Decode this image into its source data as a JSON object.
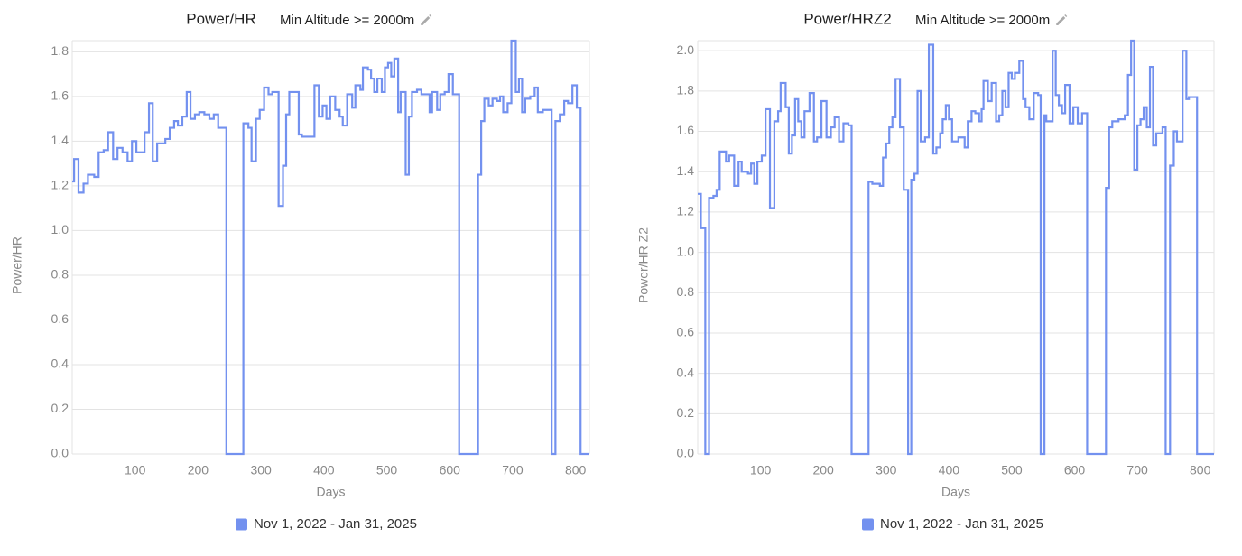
{
  "chart_data": [
    {
      "type": "line",
      "step": "after",
      "title": "Power/HR",
      "subtitle": "Min Altitude >= 2000m",
      "x_label": "Days",
      "y_label": "Power/HR",
      "grid": true,
      "xlim": [
        0,
        822
      ],
      "xticks": [
        100,
        200,
        300,
        400,
        500,
        600,
        700,
        800
      ],
      "ylim": [
        0,
        1.85
      ],
      "yticks": [
        {
          "value": 0,
          "label": "0.0"
        },
        0.2,
        0.4,
        0.6,
        0.8,
        {
          "value": 1,
          "label": "1.0"
        },
        1.2,
        1.4,
        1.6,
        1.8
      ],
      "x": [
        0,
        3,
        10,
        18,
        25,
        35,
        42,
        50,
        57,
        65,
        72,
        80,
        88,
        95,
        102,
        108,
        115,
        122,
        128,
        135,
        148,
        155,
        162,
        168,
        175,
        182,
        188,
        195,
        202,
        210,
        218,
        225,
        232,
        242,
        245,
        272,
        280,
        285,
        292,
        298,
        305,
        312,
        318,
        328,
        335,
        340,
        345,
        355,
        360,
        365,
        380,
        385,
        392,
        398,
        404,
        410,
        418,
        425,
        430,
        437,
        445,
        450,
        458,
        462,
        470,
        475,
        480,
        485,
        492,
        497,
        502,
        507,
        512,
        518,
        522,
        530,
        535,
        540,
        548,
        555,
        562,
        568,
        572,
        580,
        585,
        592,
        598,
        605,
        615,
        645,
        650,
        655,
        662,
        668,
        675,
        680,
        685,
        692,
        698,
        705,
        710,
        715,
        720,
        728,
        735,
        740,
        748,
        758,
        762,
        768,
        775,
        782,
        788,
        795,
        802,
        808
      ],
      "series": [
        {
          "name": "Nov 1, 2022 - Jan 31, 2025",
          "color": "#7391ef",
          "values": [
            1.22,
            1.32,
            1.17,
            1.21,
            1.25,
            1.24,
            1.35,
            1.36,
            1.44,
            1.32,
            1.37,
            1.35,
            1.31,
            1.4,
            1.35,
            1.35,
            1.44,
            1.57,
            1.31,
            1.39,
            1.41,
            1.46,
            1.49,
            1.47,
            1.51,
            1.62,
            1.5,
            1.52,
            1.53,
            1.52,
            1.5,
            1.52,
            1.46,
            1.46,
            0,
            1.48,
            1.46,
            1.31,
            1.5,
            1.54,
            1.64,
            1.61,
            1.62,
            1.11,
            1.29,
            1.52,
            1.62,
            1.62,
            1.43,
            1.42,
            1.42,
            1.65,
            1.51,
            1.56,
            1.5,
            1.6,
            1.54,
            1.51,
            1.47,
            1.61,
            1.55,
            1.65,
            1.63,
            1.73,
            1.72,
            1.68,
            1.62,
            1.68,
            1.62,
            1.73,
            1.75,
            1.69,
            1.77,
            1.53,
            1.62,
            1.25,
            1.51,
            1.62,
            1.63,
            1.61,
            1.61,
            1.53,
            1.62,
            1.54,
            1.61,
            1.62,
            1.7,
            1.61,
            0,
            1.25,
            1.49,
            1.59,
            1.56,
            1.59,
            1.58,
            1.6,
            1.53,
            1.57,
            1.85,
            1.62,
            1.68,
            1.53,
            1.59,
            1.6,
            1.64,
            1.53,
            1.54,
            1.54,
            0,
            1.49,
            1.52,
            1.58,
            1.57,
            1.65,
            1.55,
            0
          ]
        }
      ]
    },
    {
      "type": "line",
      "step": "after",
      "title": "Power/HRZ2",
      "subtitle": "Min Altitude >= 2000m",
      "x_label": "Days",
      "y_label": "Power/HR Z2",
      "grid": true,
      "xlim": [
        0,
        822
      ],
      "xticks": [
        100,
        200,
        300,
        400,
        500,
        600,
        700,
        800
      ],
      "ylim": [
        0,
        2.05
      ],
      "yticks": [
        {
          "value": 0,
          "label": "0.0"
        },
        0.2,
        0.4,
        0.6,
        0.8,
        {
          "value": 1,
          "label": "1.0"
        },
        1.2,
        1.4,
        1.6,
        1.8,
        {
          "value": 2,
          "label": "2.0"
        }
      ],
      "x": [
        0,
        5,
        12,
        18,
        25,
        30,
        35,
        45,
        50,
        58,
        65,
        70,
        80,
        85,
        90,
        95,
        102,
        108,
        115,
        122,
        128,
        132,
        140,
        145,
        150,
        155,
        160,
        165,
        170,
        178,
        185,
        190,
        197,
        205,
        212,
        218,
        225,
        232,
        240,
        245,
        272,
        278,
        290,
        295,
        300,
        305,
        310,
        315,
        322,
        328,
        335,
        340,
        345,
        350,
        355,
        362,
        368,
        375,
        380,
        386,
        390,
        395,
        400,
        405,
        410,
        415,
        425,
        430,
        436,
        442,
        448,
        452,
        455,
        462,
        468,
        475,
        480,
        485,
        490,
        495,
        500,
        505,
        512,
        518,
        522,
        528,
        535,
        542,
        546,
        552,
        555,
        565,
        570,
        575,
        580,
        585,
        592,
        598,
        605,
        612,
        620,
        650,
        655,
        660,
        670,
        680,
        685,
        690,
        695,
        700,
        705,
        710,
        715,
        720,
        725,
        730,
        740,
        745,
        752,
        758,
        763,
        772,
        778,
        782,
        790,
        795
      ],
      "series": [
        {
          "name": "Nov 1, 2022 - Jan 31, 2025",
          "color": "#7391ef",
          "values": [
            1.29,
            1.12,
            0,
            1.27,
            1.28,
            1.31,
            1.5,
            1.45,
            1.48,
            1.33,
            1.45,
            1.4,
            1.39,
            1.44,
            1.34,
            1.45,
            1.48,
            1.71,
            1.22,
            1.65,
            1.7,
            1.84,
            1.72,
            1.49,
            1.58,
            1.76,
            1.65,
            1.57,
            1.7,
            1.79,
            1.55,
            1.57,
            1.75,
            1.57,
            1.62,
            1.67,
            1.55,
            1.64,
            1.63,
            0,
            1.35,
            1.34,
            1.33,
            1.47,
            1.54,
            1.62,
            1.67,
            1.86,
            1.62,
            1.31,
            0,
            1.36,
            1.39,
            1.8,
            1.55,
            1.57,
            2.03,
            1.49,
            1.52,
            1.59,
            1.66,
            1.73,
            1.66,
            1.55,
            1.55,
            1.57,
            1.52,
            1.65,
            1.7,
            1.69,
            1.65,
            1.71,
            1.85,
            1.75,
            1.84,
            1.65,
            1.68,
            1.8,
            1.72,
            1.89,
            1.86,
            1.89,
            1.95,
            1.76,
            1.72,
            1.66,
            1.79,
            1.78,
            0,
            1.68,
            1.65,
            2.0,
            1.78,
            1.73,
            1.69,
            1.83,
            1.64,
            1.72,
            1.64,
            1.69,
            0,
            1.32,
            1.62,
            1.65,
            1.66,
            1.68,
            1.88,
            2.05,
            1.41,
            1.63,
            1.66,
            1.72,
            1.62,
            1.92,
            1.53,
            1.59,
            1.62,
            0,
            1.43,
            1.6,
            1.55,
            2.0,
            1.76,
            1.77,
            1.77,
            0
          ]
        }
      ]
    }
  ]
}
